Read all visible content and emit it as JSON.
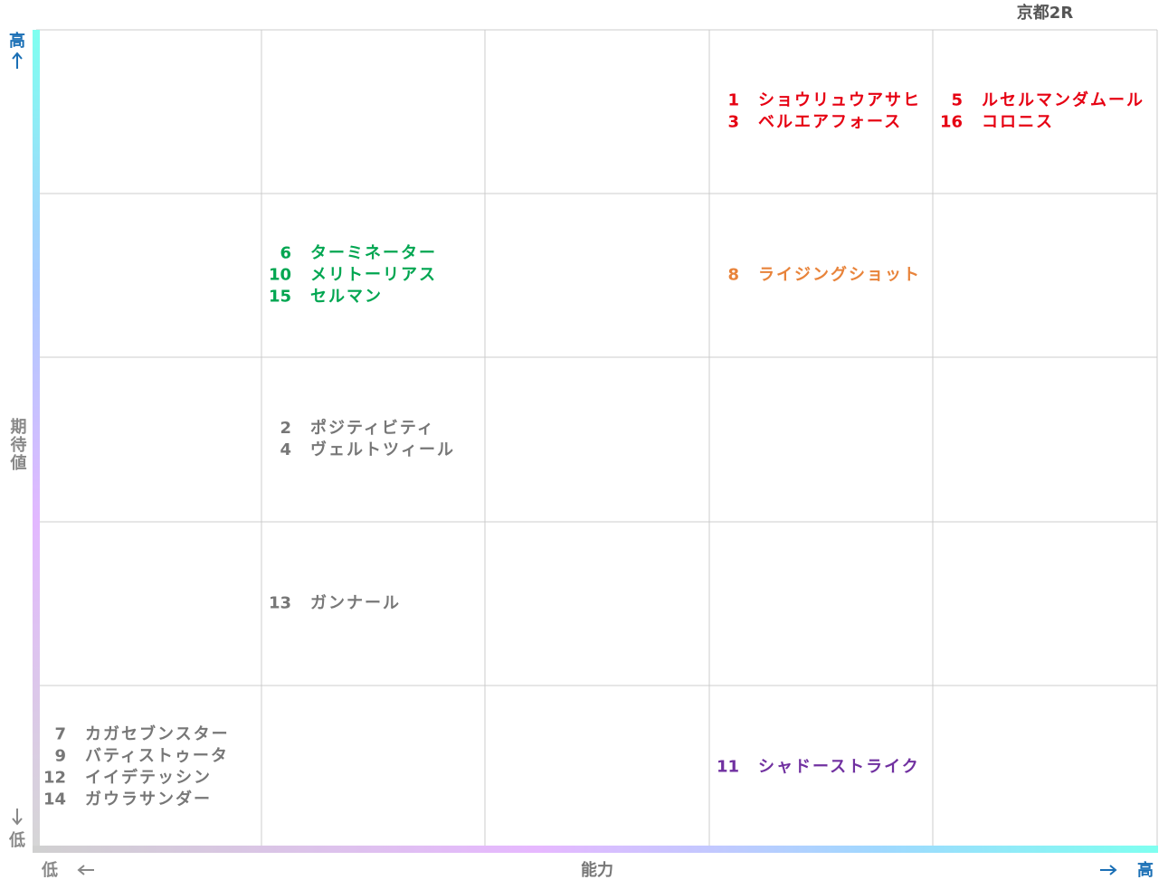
{
  "title": "京都2R",
  "axes": {
    "y_label": "期待値",
    "y_high": "高",
    "y_low": "低",
    "x_label": "能力",
    "x_low": "低",
    "x_high": "高"
  },
  "grid": {
    "rows": [
      [
        null,
        null,
        null,
        {
          "color": "#e60012",
          "entries": [
            {
              "no": 1,
              "name": "ショウリュウアサヒ"
            },
            {
              "no": 3,
              "name": "ベルエアフォース"
            }
          ]
        },
        {
          "color": "#e60012",
          "entries": [
            {
              "no": 5,
              "name": "ルセルマンダムール"
            },
            {
              "no": 16,
              "name": "コロニス"
            }
          ]
        }
      ],
      [
        null,
        {
          "color": "#00a651",
          "entries": [
            {
              "no": 6,
              "name": "ターミネーター"
            },
            {
              "no": 10,
              "name": "メリトーリアス"
            },
            {
              "no": 15,
              "name": "セルマン"
            }
          ]
        },
        null,
        {
          "color": "#e8833a",
          "entries": [
            {
              "no": 8,
              "name": "ライジングショット"
            }
          ]
        },
        null
      ],
      [
        null,
        {
          "color": "#777777",
          "entries": [
            {
              "no": 2,
              "name": "ポジティビティ"
            },
            {
              "no": 4,
              "name": "ヴェルトツィール"
            }
          ]
        },
        null,
        null,
        null
      ],
      [
        null,
        {
          "color": "#777777",
          "entries": [
            {
              "no": 13,
              "name": "ガンナール"
            }
          ]
        },
        null,
        null,
        null
      ],
      [
        {
          "color": "#777777",
          "entries": [
            {
              "no": 7,
              "name": "カガセブンスター"
            },
            {
              "no": 9,
              "name": "バティストゥータ"
            },
            {
              "no": 12,
              "name": "イイデテッシン"
            },
            {
              "no": 14,
              "name": "ガウラサンダー"
            }
          ]
        },
        null,
        null,
        {
          "color": "#7030a0",
          "entries": [
            {
              "no": 11,
              "name": "シャドーストライク"
            }
          ]
        },
        null
      ]
    ]
  }
}
